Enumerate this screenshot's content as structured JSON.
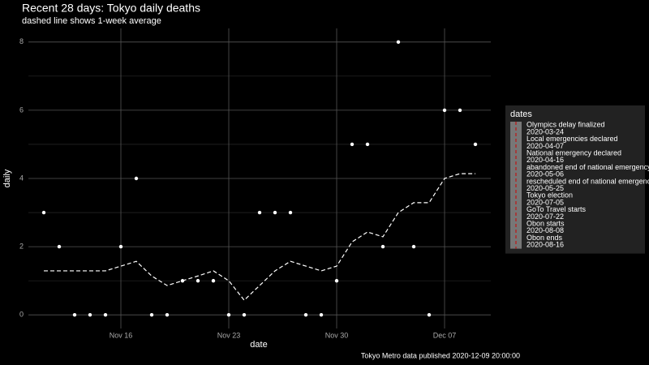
{
  "chart_data": {
    "type": "scatter",
    "title": "Recent 28 days: Tokyo daily deaths",
    "subtitle": "dashed line shows 1-week average",
    "xlabel": "date",
    "ylabel": "daily",
    "caption": "Tokyo Metro data published 2020-12-09 20:00:00",
    "x": [
      "Nov 11",
      "Nov 12",
      "Nov 13",
      "Nov 14",
      "Nov 15",
      "Nov 16",
      "Nov 17",
      "Nov 18",
      "Nov 19",
      "Nov 20",
      "Nov 21",
      "Nov 22",
      "Nov 23",
      "Nov 24",
      "Nov 25",
      "Nov 26",
      "Nov 27",
      "Nov 28",
      "Nov 29",
      "Nov 30",
      "Dec 01",
      "Dec 02",
      "Dec 03",
      "Dec 04",
      "Dec 05",
      "Dec 06",
      "Dec 07",
      "Dec 08",
      "Dec 09"
    ],
    "values": [
      3,
      2,
      0,
      0,
      0,
      2,
      4,
      0,
      0,
      1,
      1,
      1,
      0,
      0,
      3,
      3,
      3,
      0,
      0,
      1,
      5,
      5,
      2,
      8,
      2,
      0,
      6,
      6,
      5
    ],
    "average_values": [
      1.29,
      1.29,
      1.29,
      1.29,
      1.29,
      1.43,
      1.57,
      1.14,
      0.86,
      1.0,
      1.14,
      1.29,
      1.0,
      0.43,
      0.86,
      1.29,
      1.57,
      1.43,
      1.29,
      1.43,
      2.14,
      2.43,
      2.29,
      3.0,
      3.29,
      3.29,
      4.0,
      4.14,
      4.14
    ],
    "point_color": "#ffffff",
    "line_color": "#ffffff",
    "line_style": "dashed",
    "xlim": [
      "Nov 10",
      "Dec 10"
    ],
    "xticks": [
      "Nov 16",
      "Nov 23",
      "Nov 30",
      "Dec 07"
    ],
    "ylim": [
      -0.4,
      8.4
    ],
    "yticks": [
      0,
      2,
      4,
      6,
      8
    ],
    "y_minor_ticks": [
      1,
      3,
      5,
      7
    ],
    "grid": true,
    "legend_title": "dates",
    "legend_position": "right",
    "event_color": "#cc0000",
    "events": [
      {
        "name": "Olympics delay finalized",
        "date": "2020-03-24"
      },
      {
        "name": "Local emergencies declared",
        "date": "2020-04-07"
      },
      {
        "name": "National emergency declared",
        "date": "2020-04-16"
      },
      {
        "name": "abandoned end of national emergency",
        "date": "2020-05-06"
      },
      {
        "name": "rescheduled end of national emergency",
        "date": "2020-05-25"
      },
      {
        "name": "Tokyo election",
        "date": "2020-07-05"
      },
      {
        "name": "GoTo Travel starts",
        "date": "2020-07-22"
      },
      {
        "name": "Obon starts",
        "date": "2020-08-08"
      },
      {
        "name": "Obon ends",
        "date": "2020-08-16"
      }
    ]
  }
}
